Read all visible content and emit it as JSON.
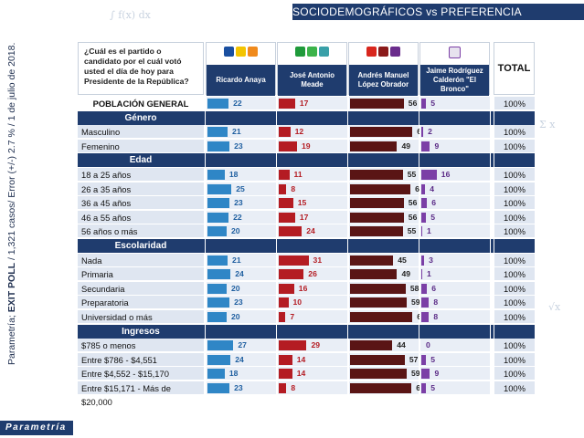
{
  "header": {
    "title": "SOCIODEMOGRÁFICOS vs PREFERENCIA ELECTORAL",
    "side_note_bold": "EXIT POLL",
    "side_note": "Parametría; EXIT POLL / 1,321 casos/ Error (+/-) 2.7 % / 1 de julio de 2018.",
    "logo": "Parametría"
  },
  "colors": {
    "navy": "#1f3c6e",
    "anaya": "#2f86c6",
    "meade": "#b41c23",
    "amlo": "#5a1515",
    "bronco": "#7b3fa6"
  },
  "chart_data": {
    "type": "table",
    "question": "¿Cuál es el partido o candidato por el cuál votó usted el día de hoy para Presidente de la República?",
    "columns": [
      "Ricardo Anaya",
      "José Antonio Meade",
      "Andrés Manuel López Obrador",
      "Jaime Rodríguez Calderón \"El Bronco\""
    ],
    "total_label": "TOTAL",
    "rows": [
      {
        "type": "row",
        "label": "POBLACIÓN GENERAL",
        "bold": true,
        "values": [
          22,
          17,
          56,
          5
        ],
        "total": "100%"
      },
      {
        "type": "section",
        "label": "Género"
      },
      {
        "type": "row",
        "label": "Masculino",
        "values": [
          21,
          12,
          65,
          2
        ],
        "total": "100%"
      },
      {
        "type": "row",
        "label": "Femenino",
        "values": [
          23,
          19,
          49,
          9
        ],
        "total": "100%"
      },
      {
        "type": "section",
        "label": "Edad"
      },
      {
        "type": "row",
        "label": "18 a 25 años",
        "values": [
          18,
          11,
          55,
          16
        ],
        "total": "100%"
      },
      {
        "type": "row",
        "label": "26 a 35 años",
        "values": [
          25,
          8,
          63,
          4
        ],
        "total": "100%"
      },
      {
        "type": "row",
        "label": "36 a 45 años",
        "values": [
          23,
          15,
          56,
          6
        ],
        "total": "100%"
      },
      {
        "type": "row",
        "label": "46 a 55 años",
        "values": [
          22,
          17,
          56,
          5
        ],
        "total": "100%"
      },
      {
        "type": "row",
        "label": "56 años o más",
        "values": [
          20,
          24,
          55,
          1
        ],
        "total": "100%"
      },
      {
        "type": "section",
        "label": "Escolaridad"
      },
      {
        "type": "row",
        "label": "Nada",
        "values": [
          21,
          31,
          45,
          3
        ],
        "total": "100%"
      },
      {
        "type": "row",
        "label": "Primaria",
        "values": [
          24,
          26,
          49,
          1
        ],
        "total": "100%"
      },
      {
        "type": "row",
        "label": "Secundaria",
        "values": [
          20,
          16,
          58,
          6
        ],
        "total": "100%"
      },
      {
        "type": "row",
        "label": "Preparatoria",
        "values": [
          23,
          10,
          59,
          8
        ],
        "total": "100%"
      },
      {
        "type": "row",
        "label": "Universidad o más",
        "values": [
          20,
          7,
          65,
          8
        ],
        "total": "100%"
      },
      {
        "type": "section",
        "label": "Ingresos"
      },
      {
        "type": "row",
        "label": "$785 o menos",
        "values": [
          27,
          29,
          44,
          0
        ],
        "total": "100%"
      },
      {
        "type": "row",
        "label": "Entre $786 - $4,551",
        "values": [
          24,
          14,
          57,
          5
        ],
        "total": "100%"
      },
      {
        "type": "row",
        "label": "Entre $4,552 - $15,170",
        "values": [
          18,
          14,
          59,
          9
        ],
        "total": "100%"
      },
      {
        "type": "row",
        "label": "Entre $15,171 - Más de $20,000",
        "values": [
          23,
          8,
          64,
          5
        ],
        "total": "100%"
      }
    ]
  }
}
